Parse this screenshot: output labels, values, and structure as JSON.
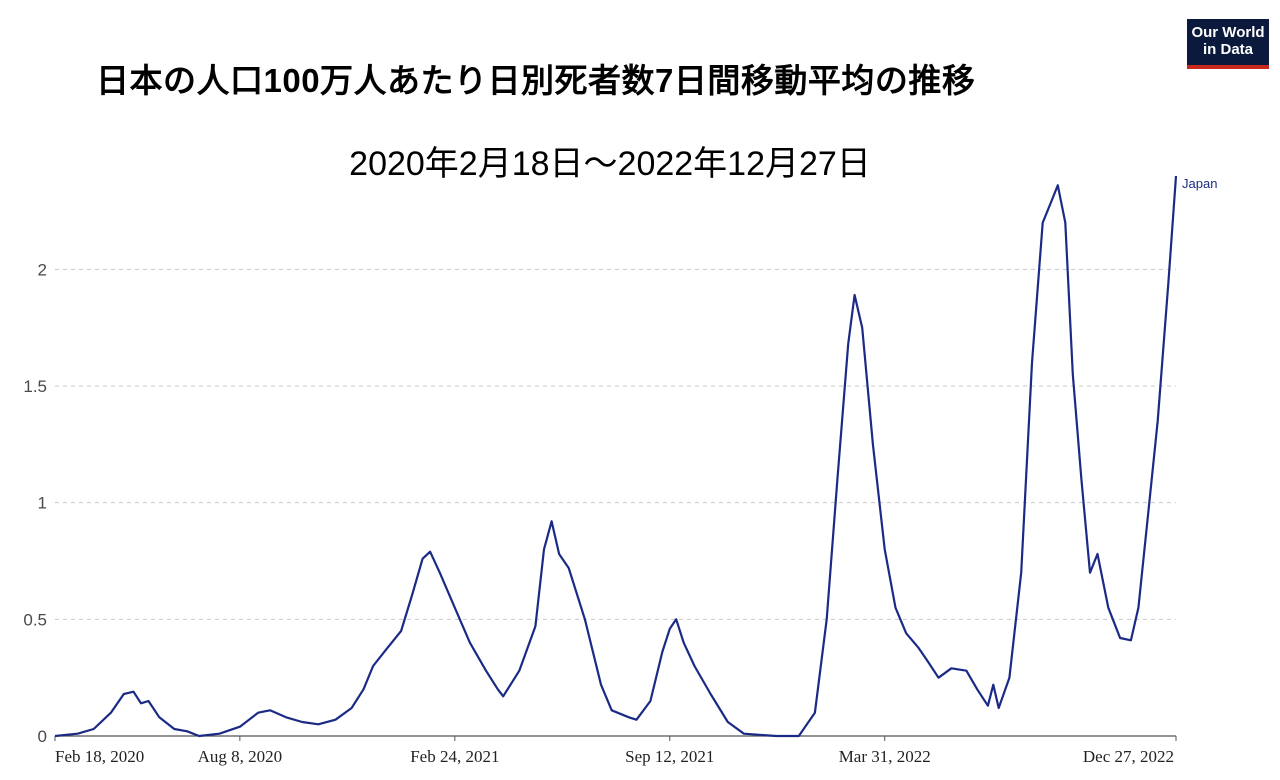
{
  "title": "日本の人口100万人あたり日別死者数7日間移動平均の推移",
  "subtitle": "2020年2月18日〜2022年12月27日",
  "logo": {
    "line1": "Our World",
    "line2": "in Data"
  },
  "colors": {
    "line": "#1b2b85",
    "grid": "#c8c8c8",
    "axis": "#555555",
    "logo_bg": "#0b1a3c",
    "logo_accent": "#c9281d"
  },
  "chart_data": {
    "type": "line",
    "title": "日本の人口100万人あたり日別死者数7日間移動平均の推移",
    "subtitle": "2020年2月18日〜2022年12月27日",
    "xlabel": "",
    "ylabel": "",
    "x_range": [
      "2020-02-18",
      "2022-12-27"
    ],
    "ylim": [
      0,
      2.4
    ],
    "y_ticks": [
      0,
      0.5,
      1,
      1.5,
      2
    ],
    "y_tick_labels": [
      "0",
      "0.5",
      "1",
      "1.5",
      "2"
    ],
    "x_ticks": [
      "2020-02-18",
      "2020-08-08",
      "2021-02-24",
      "2021-09-12",
      "2022-03-31",
      "2022-12-27"
    ],
    "x_tick_labels": [
      "Feb 18, 2020",
      "Aug 8, 2020",
      "Feb 24, 2021",
      "Sep 12, 2021",
      "Mar 31, 2022",
      "Dec 27, 2022"
    ],
    "grid": "horizontal dashed",
    "legend": "end-of-line label",
    "series": [
      {
        "name": "Japan",
        "color": "#1b2b85",
        "points": [
          [
            "2020-02-18",
            0.0
          ],
          [
            "2020-03-10",
            0.01
          ],
          [
            "2020-03-25",
            0.03
          ],
          [
            "2020-04-10",
            0.1
          ],
          [
            "2020-04-22",
            0.18
          ],
          [
            "2020-05-01",
            0.19
          ],
          [
            "2020-05-08",
            0.14
          ],
          [
            "2020-05-15",
            0.15
          ],
          [
            "2020-05-25",
            0.08
          ],
          [
            "2020-06-08",
            0.03
          ],
          [
            "2020-06-20",
            0.02
          ],
          [
            "2020-07-01",
            0.0
          ],
          [
            "2020-07-20",
            0.01
          ],
          [
            "2020-08-08",
            0.04
          ],
          [
            "2020-08-25",
            0.1
          ],
          [
            "2020-09-05",
            0.11
          ],
          [
            "2020-09-20",
            0.08
          ],
          [
            "2020-10-05",
            0.06
          ],
          [
            "2020-10-20",
            0.05
          ],
          [
            "2020-11-05",
            0.07
          ],
          [
            "2020-11-20",
            0.12
          ],
          [
            "2020-12-01",
            0.2
          ],
          [
            "2020-12-10",
            0.3
          ],
          [
            "2020-12-22",
            0.37
          ],
          [
            "2021-01-05",
            0.45
          ],
          [
            "2021-01-15",
            0.6
          ],
          [
            "2021-01-25",
            0.76
          ],
          [
            "2021-02-01",
            0.79
          ],
          [
            "2021-02-10",
            0.7
          ],
          [
            "2021-02-24",
            0.55
          ],
          [
            "2021-03-10",
            0.4
          ],
          [
            "2021-03-25",
            0.28
          ],
          [
            "2021-04-05",
            0.2
          ],
          [
            "2021-04-10",
            0.17
          ],
          [
            "2021-04-25",
            0.28
          ],
          [
            "2021-05-10",
            0.47
          ],
          [
            "2021-05-18",
            0.8
          ],
          [
            "2021-05-25",
            0.92
          ],
          [
            "2021-06-01",
            0.78
          ],
          [
            "2021-06-10",
            0.72
          ],
          [
            "2021-06-25",
            0.5
          ],
          [
            "2021-07-10",
            0.22
          ],
          [
            "2021-07-20",
            0.11
          ],
          [
            "2021-08-05",
            0.08
          ],
          [
            "2021-08-12",
            0.07
          ],
          [
            "2021-08-25",
            0.15
          ],
          [
            "2021-09-05",
            0.36
          ],
          [
            "2021-09-12",
            0.46
          ],
          [
            "2021-09-18",
            0.5
          ],
          [
            "2021-09-25",
            0.4
          ],
          [
            "2021-10-05",
            0.3
          ],
          [
            "2021-10-20",
            0.18
          ],
          [
            "2021-11-05",
            0.06
          ],
          [
            "2021-11-20",
            0.01
          ],
          [
            "2021-12-20",
            0.0
          ],
          [
            "2022-01-10",
            0.0
          ],
          [
            "2022-01-25",
            0.1
          ],
          [
            "2022-02-05",
            0.5
          ],
          [
            "2022-02-15",
            1.1
          ],
          [
            "2022-02-25",
            1.68
          ],
          [
            "2022-03-03",
            1.89
          ],
          [
            "2022-03-10",
            1.75
          ],
          [
            "2022-03-20",
            1.25
          ],
          [
            "2022-03-31",
            0.8
          ],
          [
            "2022-04-10",
            0.55
          ],
          [
            "2022-04-20",
            0.44
          ],
          [
            "2022-05-01",
            0.38
          ],
          [
            "2022-05-10",
            0.32
          ],
          [
            "2022-05-20",
            0.25
          ],
          [
            "2022-06-01",
            0.29
          ],
          [
            "2022-06-15",
            0.28
          ],
          [
            "2022-06-25",
            0.2
          ],
          [
            "2022-07-05",
            0.13
          ],
          [
            "2022-07-10",
            0.22
          ],
          [
            "2022-07-15",
            0.12
          ],
          [
            "2022-07-25",
            0.25
          ],
          [
            "2022-08-05",
            0.7
          ],
          [
            "2022-08-15",
            1.6
          ],
          [
            "2022-08-25",
            2.2
          ],
          [
            "2022-09-01",
            2.28
          ],
          [
            "2022-09-08",
            2.36
          ],
          [
            "2022-09-15",
            2.2
          ],
          [
            "2022-09-22",
            1.55
          ],
          [
            "2022-09-30",
            1.1
          ],
          [
            "2022-10-08",
            0.7
          ],
          [
            "2022-10-15",
            0.78
          ],
          [
            "2022-10-25",
            0.55
          ],
          [
            "2022-11-05",
            0.42
          ],
          [
            "2022-11-15",
            0.41
          ],
          [
            "2022-11-22",
            0.55
          ],
          [
            "2022-12-01",
            0.95
          ],
          [
            "2022-12-10",
            1.35
          ],
          [
            "2022-12-20",
            1.95
          ],
          [
            "2022-12-27",
            2.4
          ]
        ]
      }
    ]
  }
}
